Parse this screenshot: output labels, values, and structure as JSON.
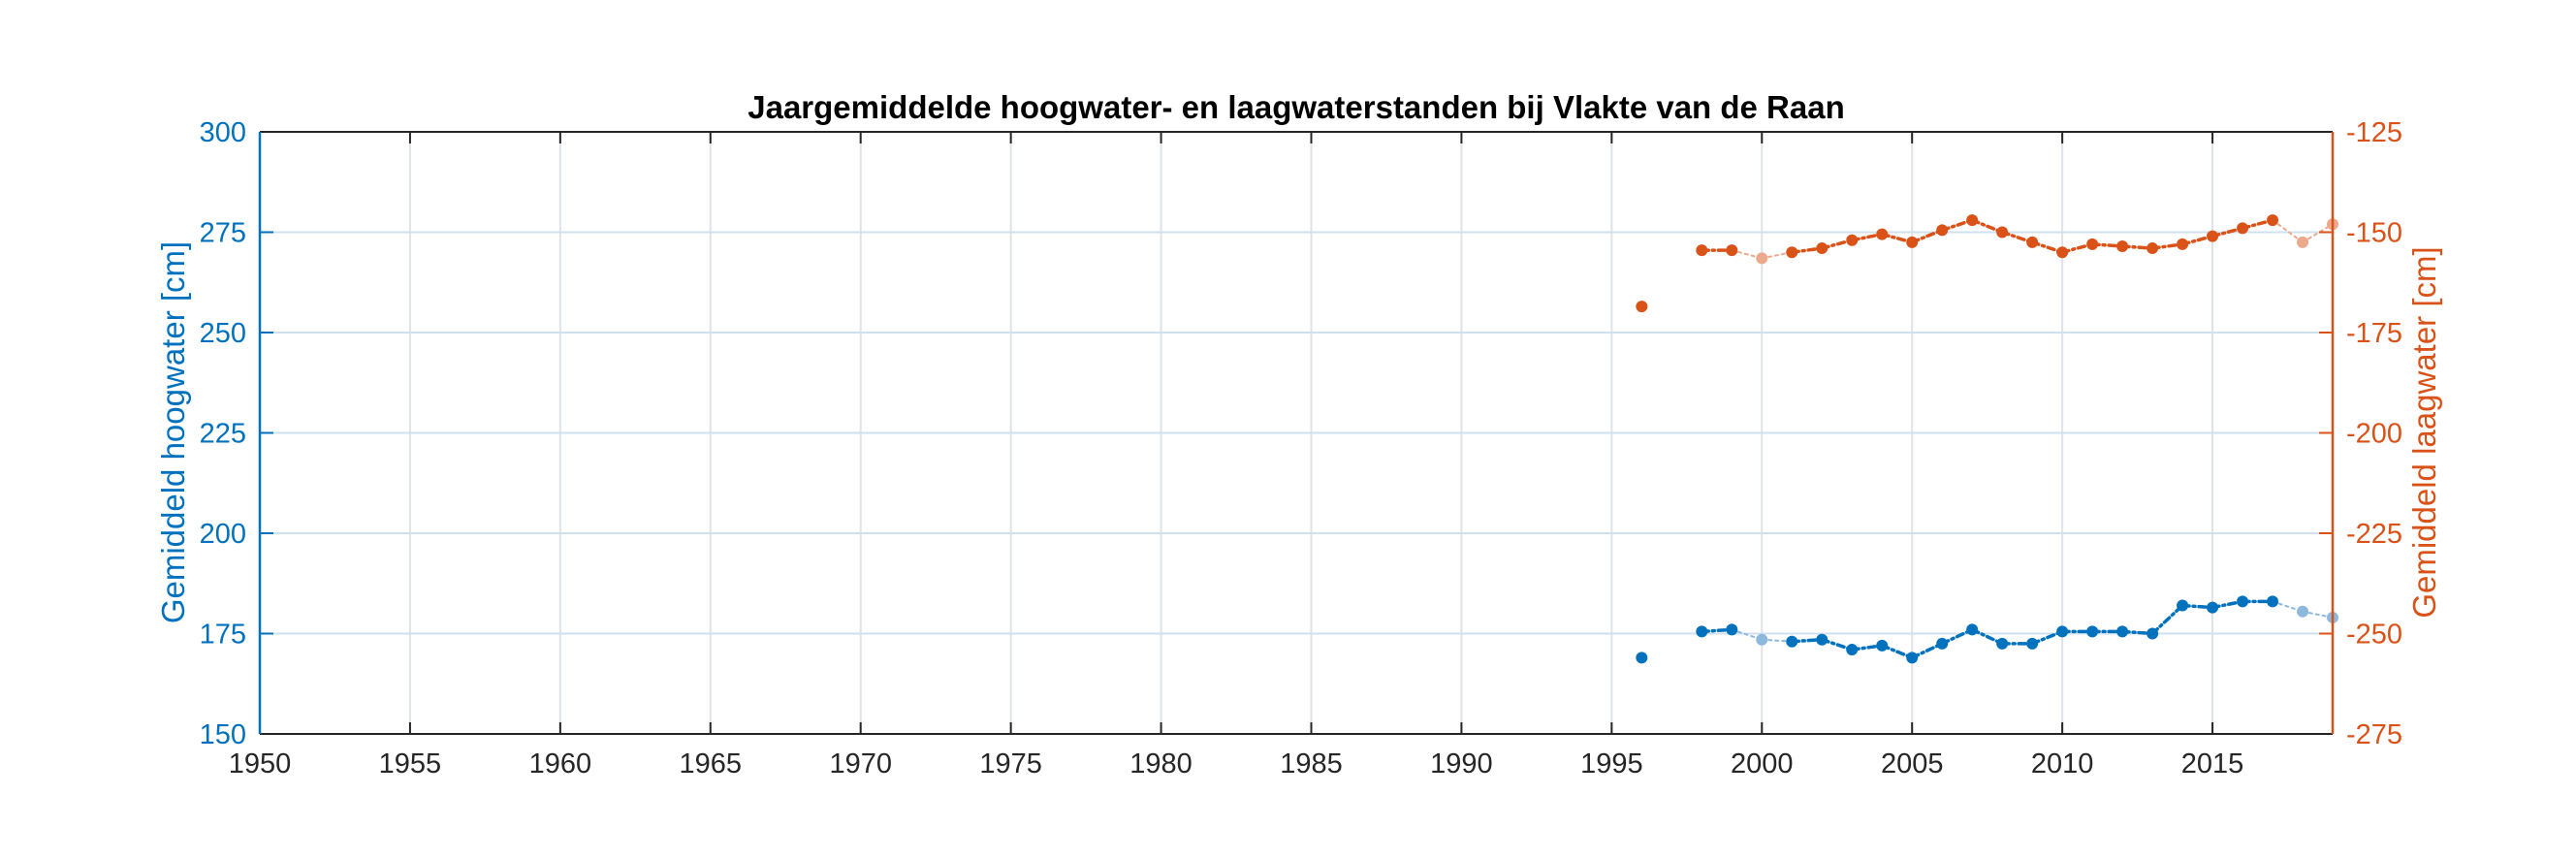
{
  "chart_data": {
    "type": "line",
    "title": "Jaargemiddelde hoogwater- en laagwaterstanden bij Vlakte van de Raan",
    "xlabel": "",
    "xlim": [
      1950,
      2019
    ],
    "xticks": [
      1950,
      1955,
      1960,
      1965,
      1970,
      1975,
      1980,
      1985,
      1990,
      1995,
      2000,
      2005,
      2010,
      2015
    ],
    "grid": true,
    "legend": "none",
    "left_axis": {
      "label": "Gemiddeld hoogwater [cm]",
      "color": "#0072BD",
      "ylim": [
        150,
        300
      ],
      "ticks": [
        150,
        175,
        200,
        225,
        250,
        275,
        300
      ]
    },
    "right_axis": {
      "label": "Gemiddeld laagwater [cm]",
      "color": "#D95319",
      "ylim": [
        -275,
        -125
      ],
      "ticks": [
        -275,
        -250,
        -225,
        -200,
        -175,
        -150,
        -125
      ]
    },
    "series": [
      {
        "axis": "left",
        "color": "#0072BD",
        "faded_color": "#8DB9DE",
        "points": [
          {
            "x": 1996,
            "y": 169.0,
            "faded": false
          },
          {
            "x": 1998,
            "y": 175.5,
            "faded": false
          },
          {
            "x": 1999,
            "y": 176.0,
            "faded": false
          },
          {
            "x": 2000,
            "y": 173.5,
            "faded": true
          },
          {
            "x": 2001,
            "y": 173.0,
            "faded": false
          },
          {
            "x": 2002,
            "y": 173.5,
            "faded": false
          },
          {
            "x": 2003,
            "y": 171.0,
            "faded": false
          },
          {
            "x": 2004,
            "y": 172.0,
            "faded": false
          },
          {
            "x": 2005,
            "y": 169.0,
            "faded": false
          },
          {
            "x": 2006,
            "y": 172.5,
            "faded": false
          },
          {
            "x": 2007,
            "y": 176.0,
            "faded": false
          },
          {
            "x": 2008,
            "y": 172.5,
            "faded": false
          },
          {
            "x": 2009,
            "y": 172.5,
            "faded": false
          },
          {
            "x": 2010,
            "y": 175.5,
            "faded": false
          },
          {
            "x": 2011,
            "y": 175.5,
            "faded": false
          },
          {
            "x": 2012,
            "y": 175.5,
            "faded": false
          },
          {
            "x": 2013,
            "y": 175.0,
            "faded": false
          },
          {
            "x": 2014,
            "y": 182.0,
            "faded": false
          },
          {
            "x": 2015,
            "y": 181.5,
            "faded": false
          },
          {
            "x": 2016,
            "y": 183.0,
            "faded": false
          },
          {
            "x": 2017,
            "y": 183.0,
            "faded": false
          },
          {
            "x": 2018,
            "y": 180.5,
            "faded": true
          },
          {
            "x": 2019,
            "y": 179.0,
            "faded": true
          }
        ]
      },
      {
        "axis": "right",
        "color": "#D95319",
        "faded_color": "#ECA98C",
        "points": [
          {
            "x": 1996,
            "y": -168.5,
            "faded": false
          },
          {
            "x": 1998,
            "y": -154.5,
            "faded": false
          },
          {
            "x": 1999,
            "y": -154.5,
            "faded": false
          },
          {
            "x": 2000,
            "y": -156.5,
            "faded": true
          },
          {
            "x": 2001,
            "y": -155.0,
            "faded": false
          },
          {
            "x": 2002,
            "y": -154.0,
            "faded": false
          },
          {
            "x": 2003,
            "y": -152.0,
            "faded": false
          },
          {
            "x": 2004,
            "y": -150.5,
            "faded": false
          },
          {
            "x": 2005,
            "y": -152.5,
            "faded": false
          },
          {
            "x": 2006,
            "y": -149.5,
            "faded": false
          },
          {
            "x": 2007,
            "y": -147.0,
            "faded": false
          },
          {
            "x": 2008,
            "y": -150.0,
            "faded": false
          },
          {
            "x": 2009,
            "y": -152.5,
            "faded": false
          },
          {
            "x": 2010,
            "y": -155.0,
            "faded": false
          },
          {
            "x": 2011,
            "y": -153.0,
            "faded": false
          },
          {
            "x": 2012,
            "y": -153.5,
            "faded": false
          },
          {
            "x": 2013,
            "y": -154.0,
            "faded": false
          },
          {
            "x": 2014,
            "y": -153.0,
            "faded": false
          },
          {
            "x": 2015,
            "y": -151.0,
            "faded": false
          },
          {
            "x": 2016,
            "y": -149.0,
            "faded": false
          },
          {
            "x": 2017,
            "y": -147.0,
            "faded": false
          },
          {
            "x": 2018,
            "y": -152.5,
            "faded": true
          },
          {
            "x": 2019,
            "y": -148.0,
            "faded": true
          }
        ]
      }
    ]
  }
}
